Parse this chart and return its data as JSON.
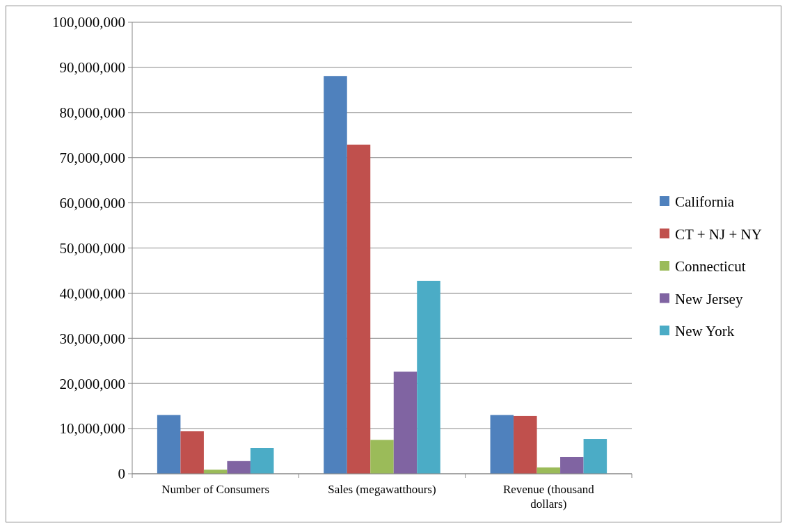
{
  "chart_data": {
    "type": "bar",
    "categories": [
      "Number of Consumers",
      "Sales (megawatthours)",
      "Revenue (thousand dollars)"
    ],
    "series": [
      {
        "name": "California",
        "color": "#4f81bd",
        "values": [
          13000000,
          88100000,
          13000000
        ]
      },
      {
        "name": "CT + NJ + NY",
        "color": "#c0504d",
        "values": [
          9400000,
          72900000,
          12800000
        ]
      },
      {
        "name": "Connecticut",
        "color": "#9bbb59",
        "values": [
          900000,
          7500000,
          1400000
        ]
      },
      {
        "name": "New Jersey",
        "color": "#8064a2",
        "values": [
          2800000,
          22600000,
          3700000
        ]
      },
      {
        "name": "New York",
        "color": "#4bacc6",
        "values": [
          5700000,
          42700000,
          7700000
        ]
      }
    ],
    "ylim": [
      0,
      100000000
    ],
    "yticks": [
      {
        "value": 0,
        "label": "0"
      },
      {
        "value": 10000000,
        "label": "10,000,000"
      },
      {
        "value": 20000000,
        "label": "20,000,000"
      },
      {
        "value": 30000000,
        "label": "30,000,000"
      },
      {
        "value": 40000000,
        "label": "40,000,000"
      },
      {
        "value": 50000000,
        "label": "50,000,000"
      },
      {
        "value": 60000000,
        "label": "60,000,000"
      },
      {
        "value": 70000000,
        "label": "70,000,000"
      },
      {
        "value": 80000000,
        "label": "80,000,000"
      },
      {
        "value": 90000000,
        "label": "90,000,000"
      },
      {
        "value": 100000000,
        "label": "100,000,000"
      }
    ],
    "grid": "y",
    "legend": "right"
  }
}
